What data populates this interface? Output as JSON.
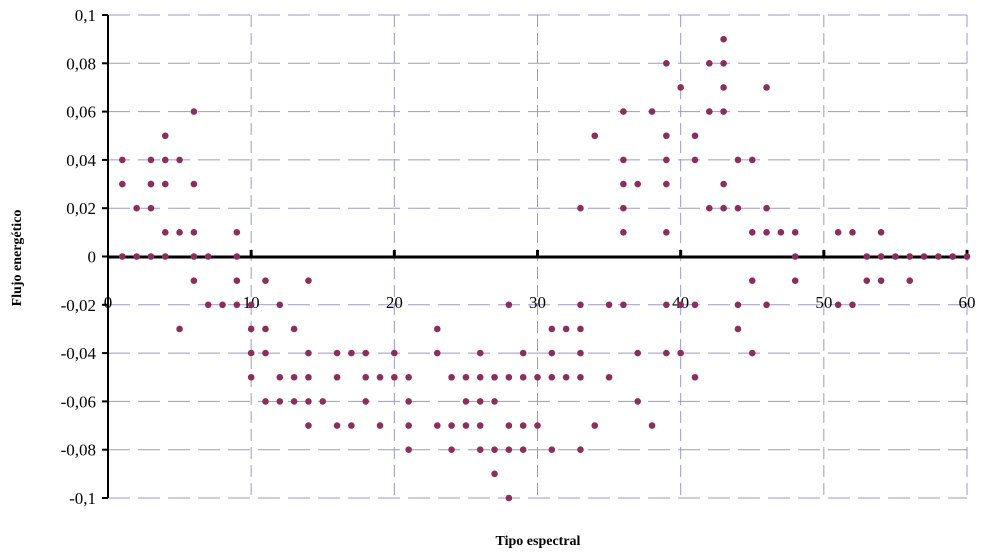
{
  "chart_data": {
    "type": "scatter",
    "title": "",
    "xlabel": "Tipo espectral",
    "ylabel": "Flujo energético",
    "xlim": [
      0,
      60
    ],
    "ylim": [
      -0.1,
      0.1
    ],
    "xticks": [
      "0",
      "10",
      "20",
      "30",
      "40",
      "50",
      "60"
    ],
    "yticks": [
      "0,1",
      "0,08",
      "0,06",
      "0,04",
      "0,02",
      "0",
      "-0,02",
      "-0,04",
      "-0,06",
      "-0,08",
      "-0,1"
    ],
    "grid": true,
    "legend": "none",
    "marker_color": "#8B2D5F",
    "series": [
      {
        "points": [
          [
            1,
            0.04
          ],
          [
            1,
            0.03
          ],
          [
            1,
            0
          ],
          [
            2,
            0.02
          ],
          [
            2,
            0
          ],
          [
            3,
            0.04
          ],
          [
            3,
            0.03
          ],
          [
            3,
            0.03
          ],
          [
            3,
            0.02
          ],
          [
            3,
            0
          ],
          [
            4,
            0.05
          ],
          [
            4,
            0.04
          ],
          [
            4,
            0.03
          ],
          [
            4,
            0.01
          ],
          [
            4,
            0
          ],
          [
            5,
            0.04
          ],
          [
            5,
            0.01
          ],
          [
            5,
            -0.03
          ],
          [
            6,
            0.06
          ],
          [
            6,
            0.03
          ],
          [
            6,
            0.01
          ],
          [
            6,
            0
          ],
          [
            6,
            -0.01
          ],
          [
            7,
            0
          ],
          [
            7,
            -0.02
          ],
          [
            8,
            -0.02
          ],
          [
            9,
            0.01
          ],
          [
            9,
            0
          ],
          [
            9,
            -0.01
          ],
          [
            9,
            -0.02
          ],
          [
            10,
            -0.02
          ],
          [
            10,
            -0.03
          ],
          [
            10,
            -0.04
          ],
          [
            10,
            -0.05
          ],
          [
            11,
            -0.01
          ],
          [
            11,
            -0.03
          ],
          [
            11,
            -0.04
          ],
          [
            11,
            -0.06
          ],
          [
            12,
            -0.02
          ],
          [
            12,
            -0.05
          ],
          [
            12,
            -0.06
          ],
          [
            13,
            -0.03
          ],
          [
            13,
            -0.05
          ],
          [
            13,
            -0.06
          ],
          [
            14,
            -0.01
          ],
          [
            14,
            -0.04
          ],
          [
            14,
            -0.05
          ],
          [
            14,
            -0.06
          ],
          [
            14,
            -0.07
          ],
          [
            15,
            -0.06
          ],
          [
            16,
            -0.04
          ],
          [
            16,
            -0.05
          ],
          [
            16,
            -0.07
          ],
          [
            17,
            -0.04
          ],
          [
            17,
            -0.07
          ],
          [
            18,
            -0.04
          ],
          [
            18,
            -0.05
          ],
          [
            18,
            -0.06
          ],
          [
            19,
            -0.05
          ],
          [
            19,
            -0.07
          ],
          [
            20,
            -0.04
          ],
          [
            20,
            -0.05
          ],
          [
            21,
            -0.05
          ],
          [
            21,
            -0.06
          ],
          [
            21,
            -0.07
          ],
          [
            21,
            -0.08
          ],
          [
            23,
            -0.03
          ],
          [
            23,
            -0.04
          ],
          [
            23,
            -0.07
          ],
          [
            24,
            -0.05
          ],
          [
            24,
            -0.07
          ],
          [
            24,
            -0.08
          ],
          [
            25,
            -0.05
          ],
          [
            25,
            -0.06
          ],
          [
            25,
            -0.07
          ],
          [
            26,
            -0.04
          ],
          [
            26,
            -0.05
          ],
          [
            26,
            -0.06
          ],
          [
            26,
            -0.07
          ],
          [
            26,
            -0.08
          ],
          [
            27,
            -0.05
          ],
          [
            27,
            -0.06
          ],
          [
            27,
            -0.08
          ],
          [
            27,
            -0.09
          ],
          [
            28,
            -0.02
          ],
          [
            28,
            -0.05
          ],
          [
            28,
            -0.07
          ],
          [
            28,
            -0.08
          ],
          [
            28,
            -0.1
          ],
          [
            29,
            -0.04
          ],
          [
            29,
            -0.05
          ],
          [
            29,
            -0.07
          ],
          [
            29,
            -0.08
          ],
          [
            30,
            -0.05
          ],
          [
            30,
            -0.07
          ],
          [
            31,
            -0.03
          ],
          [
            31,
            -0.04
          ],
          [
            31,
            -0.05
          ],
          [
            31,
            -0.08
          ],
          [
            32,
            -0.03
          ],
          [
            32,
            -0.05
          ],
          [
            33,
            0.02
          ],
          [
            33,
            -0.02
          ],
          [
            33,
            -0.03
          ],
          [
            33,
            -0.04
          ],
          [
            33,
            -0.05
          ],
          [
            33,
            -0.08
          ],
          [
            34,
            0.05
          ],
          [
            34,
            -0.07
          ],
          [
            35,
            -0.02
          ],
          [
            35,
            -0.05
          ],
          [
            36,
            0.06
          ],
          [
            36,
            0.04
          ],
          [
            36,
            0.03
          ],
          [
            36,
            0.02
          ],
          [
            36,
            0.01
          ],
          [
            36,
            -0.02
          ],
          [
            37,
            0.03
          ],
          [
            37,
            -0.04
          ],
          [
            37,
            -0.06
          ],
          [
            38,
            0.06
          ],
          [
            38,
            -0.07
          ],
          [
            39,
            0.08
          ],
          [
            39,
            0.05
          ],
          [
            39,
            0.04
          ],
          [
            39,
            0.03
          ],
          [
            39,
            0.01
          ],
          [
            39,
            -0.02
          ],
          [
            39,
            -0.04
          ],
          [
            40,
            0.07
          ],
          [
            40,
            -0.02
          ],
          [
            40,
            -0.04
          ],
          [
            41,
            0.05
          ],
          [
            41,
            0.04
          ],
          [
            41,
            -0.02
          ],
          [
            41,
            -0.05
          ],
          [
            42,
            0.08
          ],
          [
            42,
            0.06
          ],
          [
            42,
            0.02
          ],
          [
            43,
            0.09
          ],
          [
            43,
            0.08
          ],
          [
            43,
            0.07
          ],
          [
            43,
            0.06
          ],
          [
            43,
            0.03
          ],
          [
            43,
            0.02
          ],
          [
            44,
            0.04
          ],
          [
            44,
            0.02
          ],
          [
            44,
            -0.02
          ],
          [
            44,
            -0.03
          ],
          [
            45,
            0.04
          ],
          [
            45,
            0.01
          ],
          [
            45,
            -0.01
          ],
          [
            45,
            -0.04
          ],
          [
            46,
            0.07
          ],
          [
            46,
            0.02
          ],
          [
            46,
            0.01
          ],
          [
            46,
            -0.02
          ],
          [
            47,
            0.01
          ],
          [
            48,
            0.01
          ],
          [
            48,
            0
          ],
          [
            48,
            -0.01
          ],
          [
            51,
            0.01
          ],
          [
            51,
            -0.02
          ],
          [
            52,
            0.01
          ],
          [
            52,
            -0.02
          ],
          [
            53,
            0
          ],
          [
            53,
            -0.01
          ],
          [
            54,
            0.01
          ],
          [
            54,
            0
          ],
          [
            54,
            -0.01
          ],
          [
            55,
            0
          ],
          [
            56,
            0
          ],
          [
            56,
            -0.01
          ],
          [
            57,
            0
          ],
          [
            58,
            0
          ],
          [
            59,
            0
          ],
          [
            60,
            0
          ]
        ]
      }
    ]
  }
}
